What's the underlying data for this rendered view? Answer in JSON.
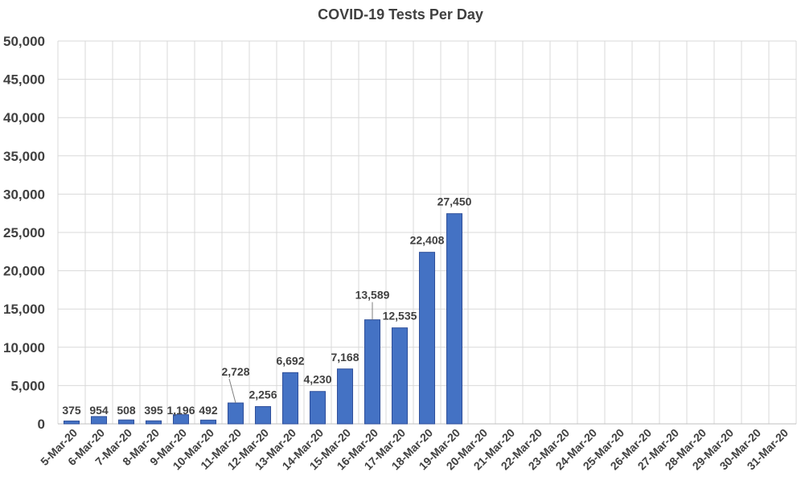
{
  "chart_data": {
    "type": "bar",
    "title": "COVID-19 Tests Per Day",
    "xlabel": "",
    "ylabel": "",
    "ylim": [
      0,
      50000
    ],
    "yticks": [
      "0",
      "5,000",
      "10,000",
      "15,000",
      "20,000",
      "25,000",
      "30,000",
      "35,000",
      "40,000",
      "45,000",
      "50,000"
    ],
    "grid": true,
    "legend": "none",
    "bar_color": "#4472c4",
    "categories": [
      "5-Mar-20",
      "6-Mar-20",
      "7-Mar-20",
      "8-Mar-20",
      "9-Mar-20",
      "10-Mar-20",
      "11-Mar-20",
      "12-Mar-20",
      "13-Mar-20",
      "14-Mar-20",
      "15-Mar-20",
      "16-Mar-20",
      "17-Mar-20",
      "18-Mar-20",
      "19-Mar-20",
      "20-Mar-20",
      "21-Mar-20",
      "22-Mar-20",
      "23-Mar-20",
      "24-Mar-20",
      "25-Mar-20",
      "26-Mar-20",
      "27-Mar-20",
      "28-Mar-20",
      "29-Mar-20",
      "30-Mar-20",
      "31-Mar-20"
    ],
    "values": [
      375,
      954,
      508,
      395,
      1196,
      492,
      2728,
      2256,
      6692,
      4230,
      7168,
      13589,
      12535,
      22408,
      27450,
      null,
      null,
      null,
      null,
      null,
      null,
      null,
      null,
      null,
      null,
      null,
      null
    ],
    "data_labels": [
      "375",
      "954",
      "508",
      "395",
      "1,196",
      "492",
      "2,728",
      "2,256",
      "6,692",
      "4,230",
      "7,168",
      "13,589",
      "12,535",
      "22,408",
      "27,450",
      "",
      "",
      "",
      "",
      "",
      "",
      "",
      "",
      "",
      "",
      "",
      ""
    ]
  }
}
